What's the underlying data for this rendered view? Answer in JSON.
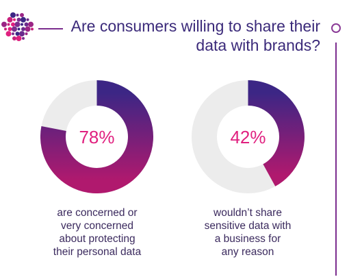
{
  "title_lines": [
    "Are consumers willing to share their",
    "data with brands?"
  ],
  "colors": {
    "accent": "#7b2d8e",
    "title": "#3b2a7a",
    "percent": "#e0207f",
    "ring_start": "#3c2685",
    "ring_end": "#b0196e",
    "remainder": "#ececec"
  },
  "icons": [
    "dot-cluster-logo-icon",
    "circle-marker-icon"
  ],
  "chart_data": [
    {
      "type": "pie",
      "value": 78,
      "label": "78%",
      "caption_lines": [
        "are concerned or",
        "very concerned",
        "about protecting",
        "their personal data"
      ]
    },
    {
      "type": "pie",
      "value": 42,
      "label": "42%",
      "caption_lines": [
        "wouldn’t share",
        "sensitive data with",
        "a business for",
        "any reason"
      ]
    }
  ]
}
